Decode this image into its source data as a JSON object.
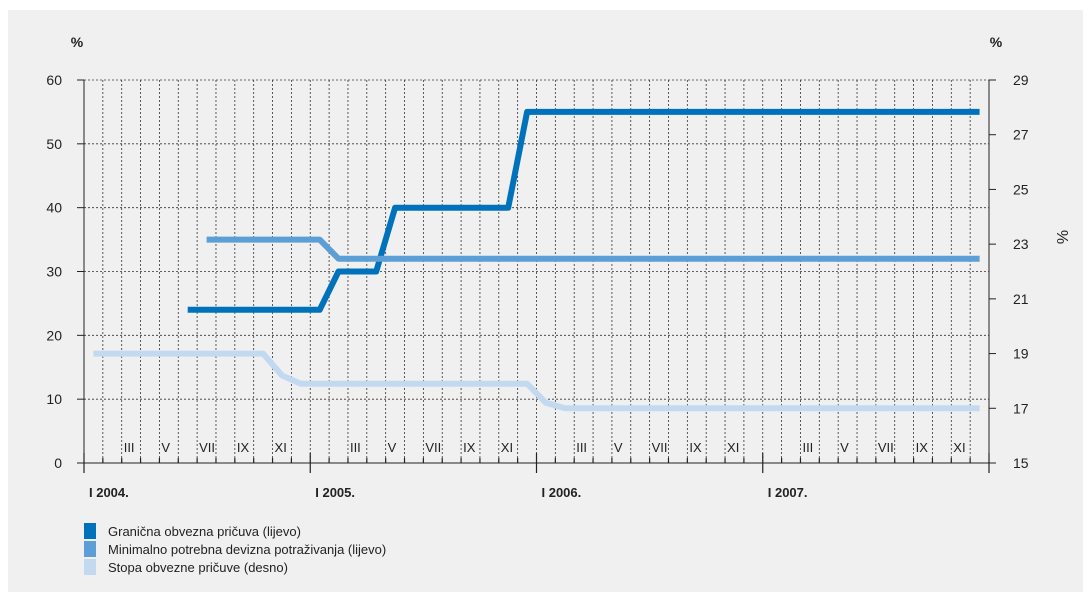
{
  "chart_data": {
    "type": "line",
    "left_axis_unit": "%",
    "right_axis_unit": "%",
    "right_axis_label": "%",
    "left_yticks": [
      0,
      10,
      20,
      30,
      40,
      50,
      60
    ],
    "right_yticks": [
      15,
      17,
      19,
      21,
      23,
      25,
      27,
      29
    ],
    "ylim_left": [
      0,
      60
    ],
    "ylim_right": [
      15,
      29
    ],
    "x_unit": "month index from I 2004 (0 = January 2004)",
    "xlim": [
      0,
      48
    ],
    "year_labels": [
      {
        "x": 0,
        "label": "I 2004."
      },
      {
        "x": 12,
        "label": "I 2005."
      },
      {
        "x": 24,
        "label": "I 2006."
      },
      {
        "x": 36,
        "label": "I 2007."
      }
    ],
    "month_labels": [
      {
        "x": 2,
        "label": "III"
      },
      {
        "x": 4,
        "label": "V"
      },
      {
        "x": 6,
        "label": "VII"
      },
      {
        "x": 8,
        "label": "IX"
      },
      {
        "x": 10,
        "label": "XI"
      },
      {
        "x": 14,
        "label": "III"
      },
      {
        "x": 16,
        "label": "V"
      },
      {
        "x": 18,
        "label": "VII"
      },
      {
        "x": 20,
        "label": "IX"
      },
      {
        "x": 22,
        "label": "XI"
      },
      {
        "x": 26,
        "label": "III"
      },
      {
        "x": 28,
        "label": "V"
      },
      {
        "x": 30,
        "label": "VII"
      },
      {
        "x": 32,
        "label": "IX"
      },
      {
        "x": 34,
        "label": "XI"
      },
      {
        "x": 38,
        "label": "III"
      },
      {
        "x": 40,
        "label": "V"
      },
      {
        "x": 42,
        "label": "VII"
      },
      {
        "x": 44,
        "label": "IX"
      },
      {
        "x": 46,
        "label": "XI"
      }
    ],
    "grid": true,
    "legend_position": "bottom-left",
    "series": [
      {
        "name": "Granična obvezna pričuva (lijevo)",
        "axis": "left",
        "color": "#0072bc",
        "points": [
          [
            5.5,
            24
          ],
          [
            12.5,
            24
          ],
          [
            13.5,
            30
          ],
          [
            15.5,
            30
          ],
          [
            16.5,
            40
          ],
          [
            22.5,
            40
          ],
          [
            23.5,
            55
          ],
          [
            47.5,
            55
          ]
        ]
      },
      {
        "name": "Minimalno potrebna devizna potraživanja (lijevo)",
        "axis": "left",
        "color": "#5b9fd6",
        "points": [
          [
            6.5,
            35
          ],
          [
            12.5,
            35
          ],
          [
            13.5,
            32
          ],
          [
            47.5,
            32
          ]
        ]
      },
      {
        "name": "Stopa obvezne pričuve (desno)",
        "axis": "right",
        "color": "#c3d9f0",
        "points": [
          [
            0.5,
            19
          ],
          [
            9.5,
            19
          ],
          [
            10.5,
            18.2
          ],
          [
            11.5,
            17.9
          ],
          [
            23.5,
            17.9
          ],
          [
            24.5,
            17.2
          ],
          [
            25.5,
            17
          ],
          [
            47.5,
            17
          ]
        ]
      }
    ]
  }
}
